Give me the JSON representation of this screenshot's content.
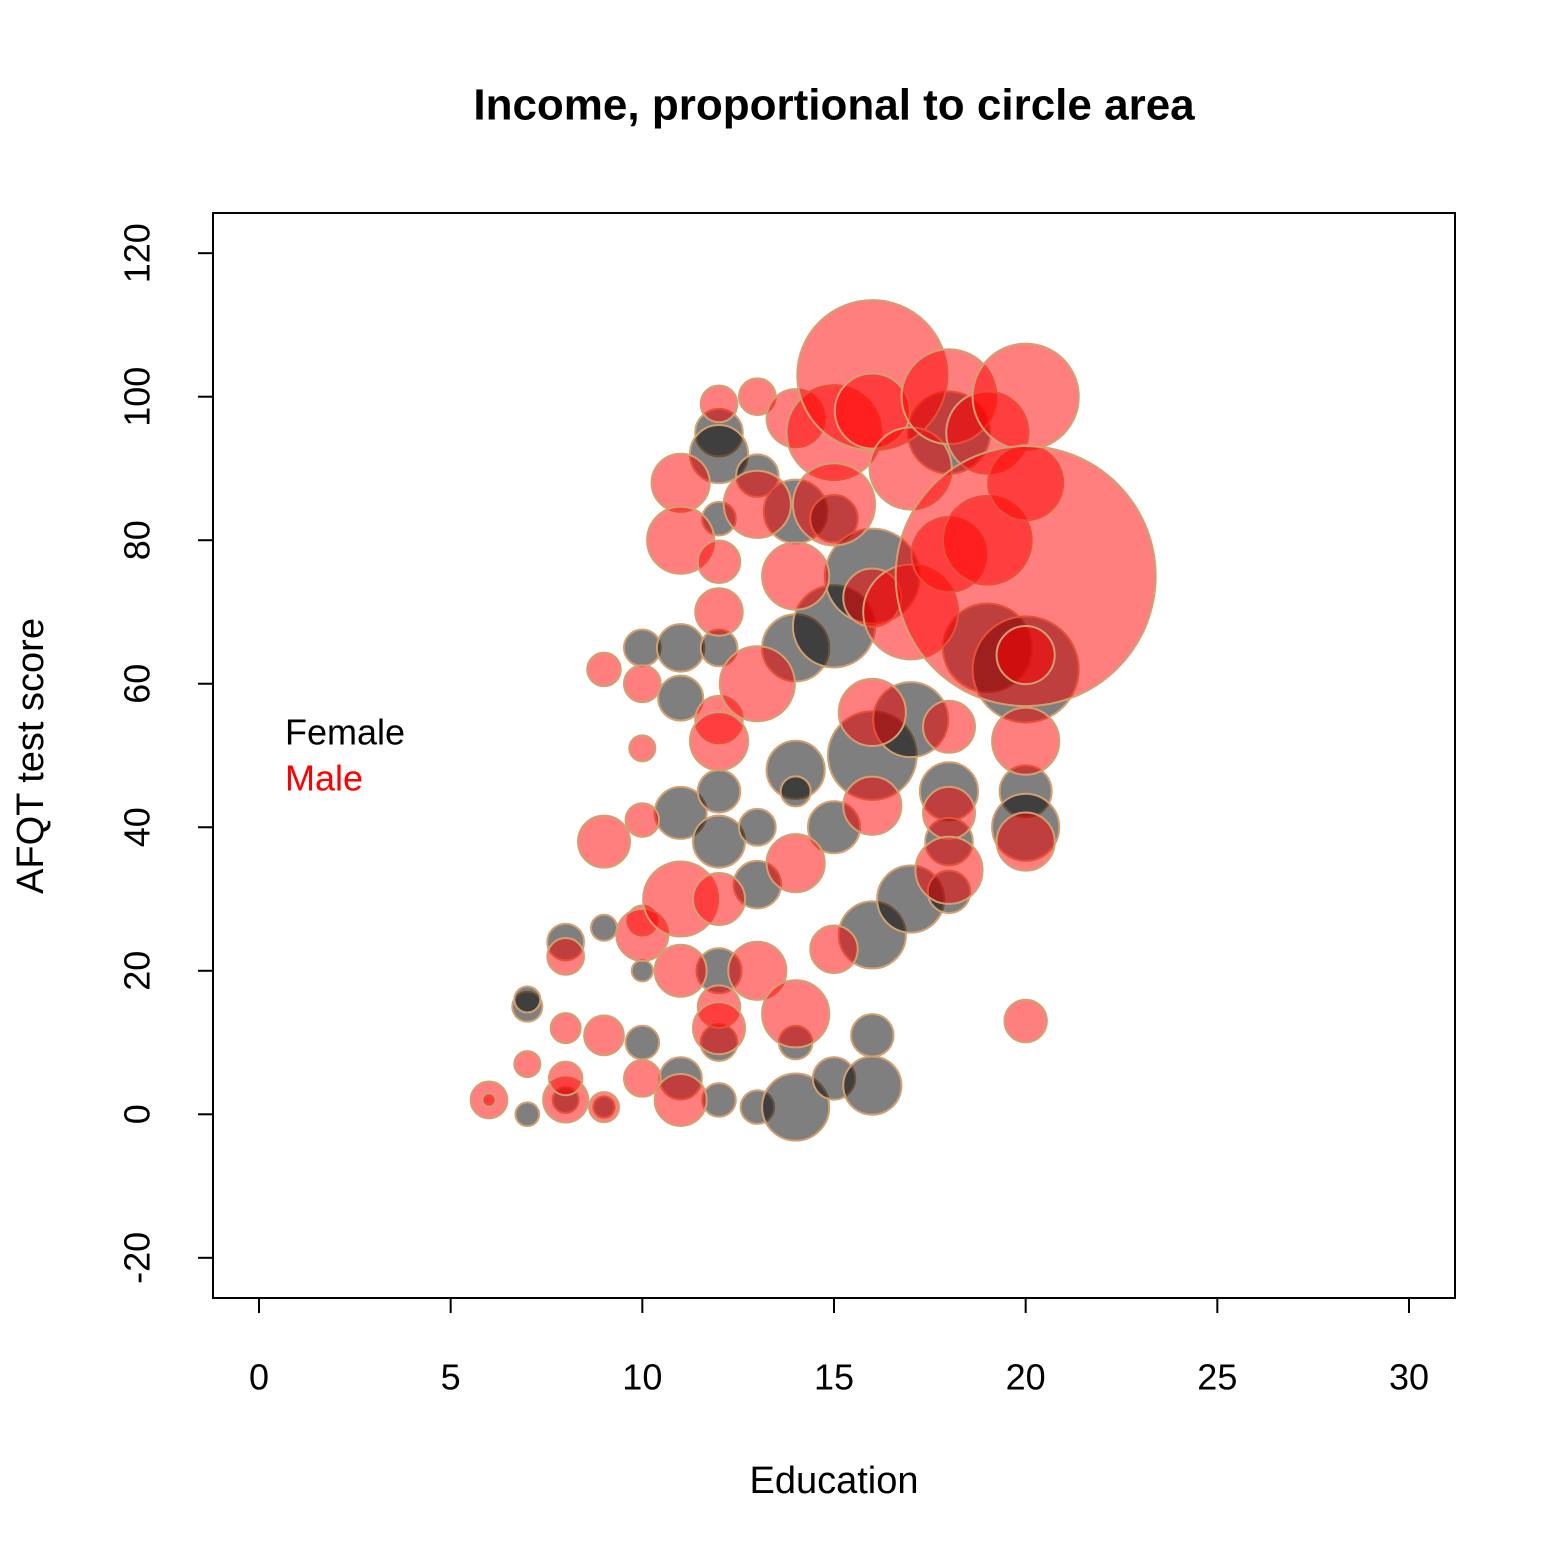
{
  "chart_data": {
    "type": "bubble",
    "title": "Income, proportional to circle area",
    "x_label": "Education",
    "y_label": "AFQT test score",
    "xlim": [
      -1.2,
      31.2
    ],
    "ylim": [
      -25.6,
      125.6
    ],
    "xticks": [
      0,
      5,
      10,
      15,
      20,
      25,
      30
    ],
    "yticks": [
      -20,
      0,
      20,
      40,
      60,
      80,
      100,
      120
    ],
    "legend": "left",
    "edge_color": "#d2a070",
    "opacity": 0.5,
    "series": [
      {
        "name": "Female",
        "color": "#000000",
        "x": [
          7,
          7,
          7,
          8,
          8,
          9,
          9,
          10,
          10,
          10,
          11,
          11,
          11,
          11,
          12,
          12,
          12,
          12,
          12,
          12,
          12,
          12,
          12,
          13,
          13,
          13,
          13,
          14,
          14,
          14,
          14,
          14,
          14,
          15,
          15,
          15,
          15,
          16,
          16,
          16,
          16,
          16,
          17,
          17,
          18,
          18,
          18,
          18,
          19,
          20,
          20,
          20
        ],
        "values": [
          15,
          16,
          0,
          24,
          2,
          26,
          1,
          65,
          10,
          20,
          65,
          58,
          42,
          5,
          95,
          92,
          83,
          65,
          45,
          38,
          20,
          10,
          2,
          89,
          40,
          32,
          1,
          84,
          65,
          48,
          45,
          10,
          1,
          83,
          68,
          40,
          5,
          75,
          50,
          25,
          11,
          4,
          30,
          55,
          95,
          45,
          38,
          31,
          65,
          45,
          62,
          40
        ],
        "sizes": [
          4000,
          3000,
          2500,
          6000,
          3000,
          3000,
          2000,
          6000,
          5000,
          2000,
          10000,
          9000,
          12000,
          8000,
          10000,
          15000,
          5000,
          6000,
          8000,
          12000,
          9000,
          6000,
          5000,
          8000,
          6000,
          10000,
          5000,
          18000,
          20000,
          15000,
          4000,
          5000,
          20000,
          10000,
          30000,
          12000,
          8000,
          40000,
          35000,
          20000,
          8000,
          15000,
          20000,
          25000,
          30000,
          15000,
          10000,
          8000,
          35000,
          12000,
          50000,
          20000
        ]
      },
      {
        "name": "Male",
        "color": "#ff0000",
        "x": [
          6,
          6,
          7,
          8,
          8,
          8,
          8,
          9,
          9,
          9,
          9,
          10,
          10,
          10,
          10,
          10,
          10,
          11,
          11,
          11,
          11,
          11,
          12,
          12,
          12,
          12,
          12,
          12,
          12,
          12,
          13,
          13,
          13,
          13,
          14,
          14,
          14,
          14,
          15,
          15,
          15,
          16,
          16,
          16,
          16,
          16,
          17,
          17,
          18,
          18,
          18,
          18,
          19,
          19,
          20,
          20,
          20,
          20,
          20,
          20,
          20,
          18
        ],
        "values": [
          2,
          2,
          7,
          22,
          12,
          2,
          5,
          62,
          38,
          11,
          1,
          60,
          51,
          41,
          27,
          25,
          5,
          88,
          80,
          30,
          2,
          20,
          99,
          77,
          70,
          55,
          52,
          30,
          15,
          12,
          100,
          85,
          60,
          20,
          97,
          75,
          35,
          14,
          23,
          95,
          85,
          103,
          98,
          72,
          56,
          43,
          90,
          70,
          100,
          78,
          54,
          42,
          95,
          80,
          100,
          88,
          75,
          64,
          52,
          38,
          13,
          34
        ],
        "sizes": [
          6000,
          800,
          3000,
          6000,
          4000,
          9000,
          5000,
          5000,
          12000,
          7000,
          4000,
          6000,
          3000,
          5000,
          4000,
          12000,
          6000,
          15000,
          20000,
          25000,
          12000,
          12000,
          6000,
          8000,
          10000,
          10000,
          15000,
          12000,
          8000,
          12000,
          6000,
          20000,
          25000,
          15000,
          15000,
          20000,
          15000,
          20000,
          10000,
          40000,
          30000,
          100000,
          25000,
          15000,
          20000,
          15000,
          30000,
          40000,
          40000,
          25000,
          12000,
          12000,
          30000,
          35000,
          50000,
          25000,
          300000,
          15000,
          20000,
          15000,
          8000,
          20000
        ]
      }
    ]
  }
}
